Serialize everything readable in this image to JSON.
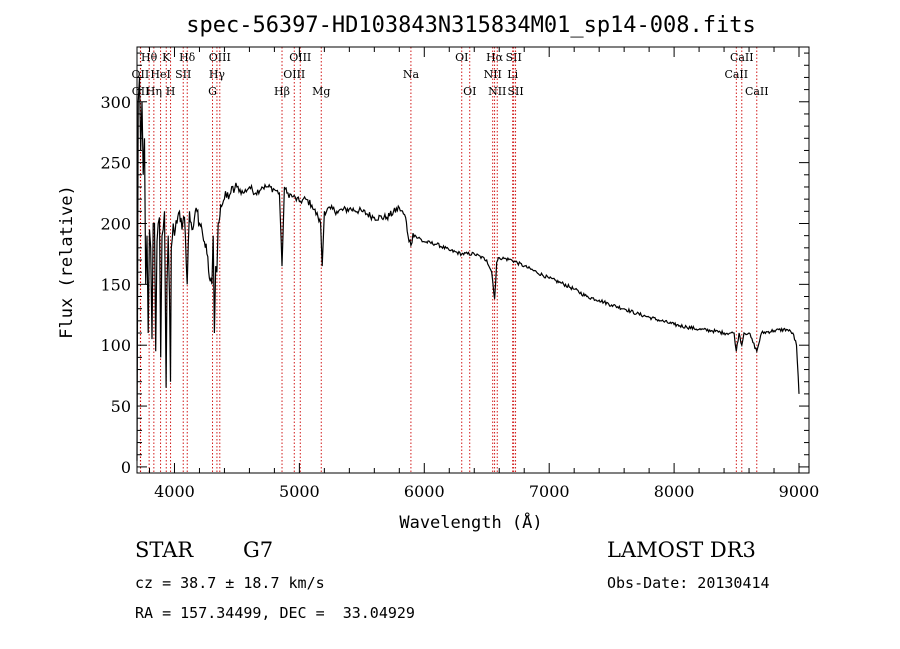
{
  "chart_data": {
    "type": "line",
    "title": "spec-56397-HD103843N315834M01_sp14-008.fits",
    "xlabel": "Wavelength (Å)",
    "ylabel": "Flux (relative)",
    "xlim": [
      3700,
      9080
    ],
    "ylim": [
      -5,
      345
    ],
    "xticks": [
      4000,
      5000,
      6000,
      7000,
      8000,
      9000
    ],
    "yticks": [
      0,
      50,
      100,
      150,
      200,
      250,
      300
    ],
    "grid": false,
    "series": [
      {
        "name": "spectrum",
        "x": [
          3700,
          3710,
          3720,
          3730,
          3740,
          3750,
          3760,
          3770,
          3780,
          3790,
          3800,
          3810,
          3820,
          3830,
          3840,
          3850,
          3860,
          3870,
          3880,
          3890,
          3900,
          3910,
          3920,
          3933,
          3940,
          3950,
          3960,
          3968,
          3975,
          3990,
          4000,
          4020,
          4040,
          4060,
          4080,
          4102,
          4120,
          4140,
          4160,
          4180,
          4200,
          4220,
          4240,
          4260,
          4280,
          4300,
          4310,
          4320,
          4330,
          4340,
          4350,
          4370,
          4400,
          4450,
          4500,
          4550,
          4600,
          4650,
          4700,
          4750,
          4800,
          4840,
          4861,
          4880,
          4900,
          4950,
          5000,
          5050,
          5100,
          5150,
          5170,
          5183,
          5200,
          5250,
          5300,
          5400,
          5500,
          5600,
          5700,
          5800,
          5850,
          5870,
          5893,
          5910,
          5950,
          6000,
          6100,
          6200,
          6300,
          6400,
          6500,
          6540,
          6563,
          6580,
          6600,
          6700,
          6800,
          6900,
          7000,
          7100,
          7200,
          7300,
          7400,
          7500,
          7600,
          7700,
          7800,
          7900,
          8000,
          8100,
          8200,
          8300,
          8400,
          8480,
          8498,
          8520,
          8542,
          8560,
          8600,
          8662,
          8700,
          8800,
          8900,
          8950,
          8980,
          9000
        ],
        "values": [
          5,
          300,
          320,
          260,
          300,
          240,
          270,
          150,
          190,
          110,
          195,
          180,
          105,
          200,
          200,
          95,
          185,
          200,
          205,
          90,
          190,
          195,
          210,
          65,
          150,
          190,
          140,
          70,
          180,
          200,
          190,
          200,
          210,
          195,
          205,
          150,
          210,
          195,
          205,
          210,
          200,
          195,
          185,
          175,
          155,
          150,
          190,
          110,
          165,
          160,
          200,
          215,
          220,
          225,
          230,
          225,
          230,
          225,
          230,
          230,
          228,
          225,
          165,
          230,
          225,
          222,
          218,
          220,
          215,
          205,
          200,
          165,
          210,
          212,
          210,
          212,
          210,
          205,
          205,
          213,
          205,
          190,
          182,
          192,
          188,
          185,
          183,
          178,
          175,
          175,
          170,
          160,
          138,
          168,
          172,
          170,
          165,
          160,
          155,
          151,
          146,
          140,
          137,
          133,
          130,
          126,
          123,
          120,
          117,
          115,
          113,
          112,
          110,
          110,
          95,
          110,
          100,
          110,
          110,
          95,
          110,
          112,
          113,
          110,
          100,
          60
        ]
      }
    ],
    "spectral_lines": [
      {
        "label": "Hθ",
        "x": 3797,
        "row": 0,
        "anchor": "middle"
      },
      {
        "label": "OII",
        "x": 3727,
        "row": 1,
        "anchor": "middle"
      },
      {
        "label": "OII",
        "x": 3729,
        "row": 2,
        "anchor": "middle"
      },
      {
        "label": "K",
        "x": 3934,
        "row": 0,
        "anchor": "middle"
      },
      {
        "label": "HeI",
        "x": 3889,
        "row": 1,
        "anchor": "middle"
      },
      {
        "label": "Hη",
        "x": 3835,
        "row": 2,
        "anchor": "middle"
      },
      {
        "label": "H",
        "x": 3969,
        "row": 2,
        "anchor": "middle"
      },
      {
        "label": "Hδ",
        "x": 4102,
        "row": 0,
        "anchor": "middle"
      },
      {
        "label": "SII",
        "x": 4070,
        "row": 1,
        "anchor": "middle"
      },
      {
        "label": "OIII",
        "x": 4363,
        "row": 0,
        "anchor": "middle"
      },
      {
        "label": "Hγ",
        "x": 4340,
        "row": 1,
        "anchor": "middle"
      },
      {
        "label": "G",
        "x": 4305,
        "row": 2,
        "anchor": "middle"
      },
      {
        "label": "OIII",
        "x": 5007,
        "row": 0,
        "anchor": "middle"
      },
      {
        "label": "OIII",
        "x": 4959,
        "row": 1,
        "anchor": "middle"
      },
      {
        "label": "Hβ",
        "x": 4861,
        "row": 2,
        "anchor": "middle"
      },
      {
        "label": "Mg",
        "x": 5175,
        "row": 2,
        "anchor": "middle"
      },
      {
        "label": "Na",
        "x": 5893,
        "row": 1,
        "anchor": "middle"
      },
      {
        "label": "OI",
        "x": 6300,
        "row": 0,
        "anchor": "middle"
      },
      {
        "label": "OI",
        "x": 6364,
        "row": 2,
        "anchor": "middle"
      },
      {
        "label": "Hα",
        "x": 6563,
        "row": 0,
        "anchor": "middle"
      },
      {
        "label": "SII",
        "x": 6716,
        "row": 0,
        "anchor": "middle"
      },
      {
        "label": "NII",
        "x": 6548,
        "row": 1,
        "anchor": "middle"
      },
      {
        "label": "Li",
        "x": 6708,
        "row": 1,
        "anchor": "middle"
      },
      {
        "label": "NII",
        "x": 6584,
        "row": 2,
        "anchor": "middle"
      },
      {
        "label": "SII",
        "x": 6731,
        "row": 2,
        "anchor": "middle"
      },
      {
        "label": "CaII",
        "x": 8542,
        "row": 0,
        "anchor": "middle"
      },
      {
        "label": "CaII",
        "x": 8498,
        "row": 1,
        "anchor": "middle"
      },
      {
        "label": "CaII",
        "x": 8662,
        "row": 2,
        "anchor": "middle"
      }
    ],
    "line_color": "#cc0000"
  },
  "info": {
    "object_class": "STAR",
    "subclass": "G7",
    "redshift": "cz = 38.7 ± 18.7 km/s",
    "coordinates": "RA = 157.34499, DEC =  33.04929",
    "survey": "LAMOST DR3",
    "obs_date": "Obs-Date: 20130414"
  }
}
